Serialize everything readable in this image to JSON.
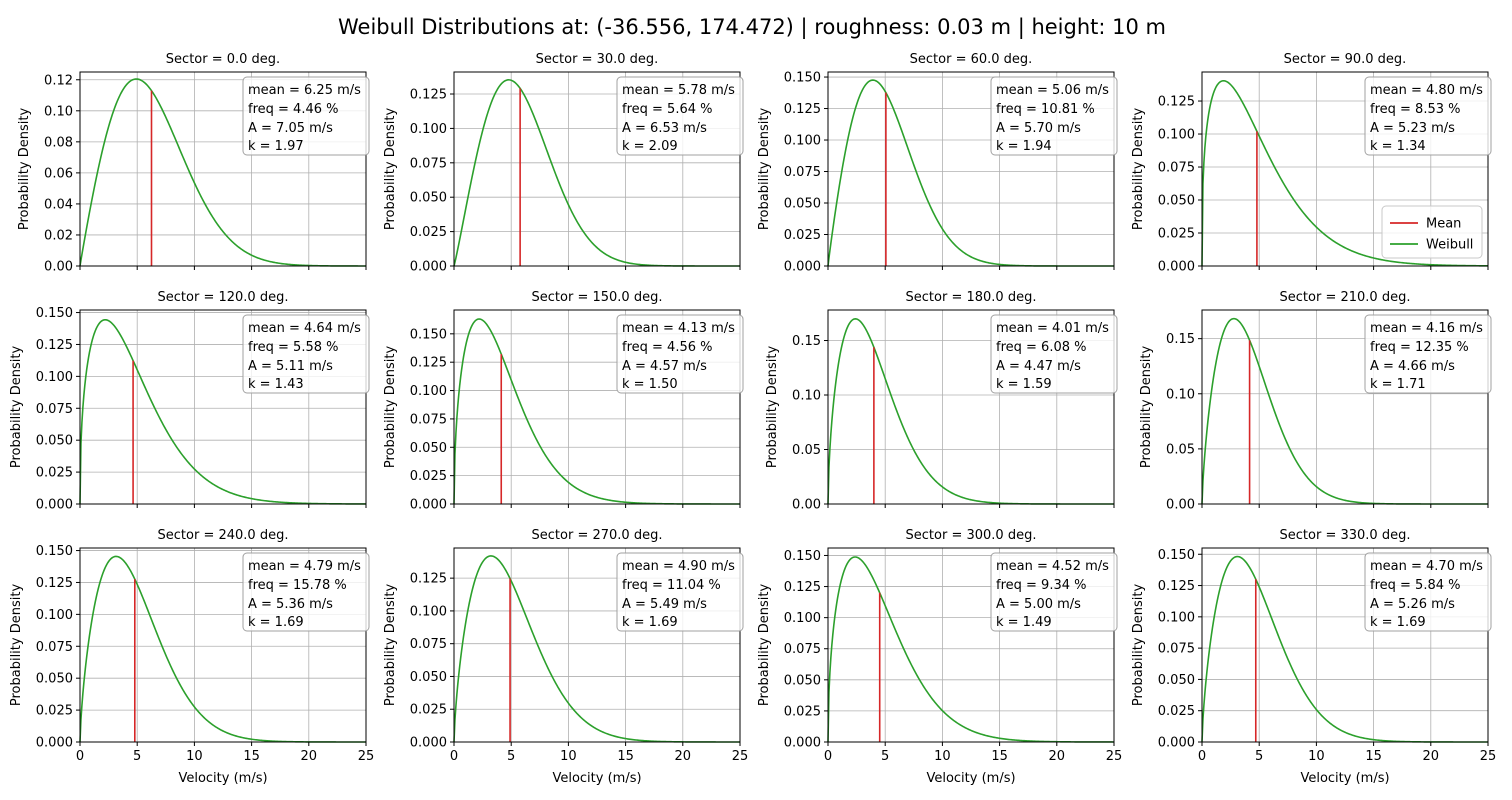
{
  "chart_data": {
    "type": "line",
    "title": "Weibull Distributions at: (-36.556, 174.472) | roughness: 0.03 m | height: 10 m",
    "xlabel": "Velocity (m/s)",
    "ylabel": "Probability Density",
    "xlim": [
      0,
      25
    ],
    "xticks": [
      0,
      5,
      10,
      15,
      20,
      25
    ],
    "grid": true,
    "legend": {
      "placement": "lower-right",
      "entries": [
        "Mean",
        "Weibull"
      ]
    },
    "colors": {
      "Mean": "#d62728",
      "Weibull": "#2ca02c"
    },
    "subplot_title_prefix": "Sector = ",
    "subplot_title_suffix": " deg.",
    "panels": [
      {
        "sector": "0.0",
        "mean": "6.25",
        "freq": "4.46",
        "A": "7.05",
        "k": "1.97",
        "ylim": [
          0,
          0.125
        ],
        "yticks": [
          "0.00",
          "0.02",
          "0.04",
          "0.06",
          "0.08",
          "0.10",
          "0.12"
        ]
      },
      {
        "sector": "30.0",
        "mean": "5.78",
        "freq": "5.64",
        "A": "6.53",
        "k": "2.09",
        "ylim": [
          0,
          0.141
        ],
        "yticks": [
          "0.000",
          "0.025",
          "0.050",
          "0.075",
          "0.100",
          "0.125"
        ]
      },
      {
        "sector": "60.0",
        "mean": "5.06",
        "freq": "10.81",
        "A": "5.70",
        "k": "1.94",
        "ylim": [
          0,
          0.154
        ],
        "yticks": [
          "0.000",
          "0.025",
          "0.050",
          "0.075",
          "0.100",
          "0.125",
          "0.150"
        ]
      },
      {
        "sector": "90.0",
        "mean": "4.80",
        "freq": "8.53",
        "A": "5.23",
        "k": "1.34",
        "ylim": [
          0,
          0.147
        ],
        "yticks": [
          "0.000",
          "0.025",
          "0.050",
          "0.075",
          "0.100",
          "0.125"
        ]
      },
      {
        "sector": "120.0",
        "mean": "4.64",
        "freq": "5.58",
        "A": "5.11",
        "k": "1.43",
        "ylim": [
          0,
          0.152
        ],
        "yticks": [
          "0.000",
          "0.025",
          "0.050",
          "0.075",
          "0.100",
          "0.125",
          "0.150"
        ]
      },
      {
        "sector": "150.0",
        "mean": "4.13",
        "freq": "4.56",
        "A": "4.57",
        "k": "1.50",
        "ylim": [
          0,
          0.171
        ],
        "yticks": [
          "0.000",
          "0.025",
          "0.050",
          "0.075",
          "0.100",
          "0.125",
          "0.150"
        ]
      },
      {
        "sector": "180.0",
        "mean": "4.01",
        "freq": "6.08",
        "A": "4.47",
        "k": "1.59",
        "ylim": [
          0,
          0.178
        ],
        "yticks": [
          "0.00",
          "0.05",
          "0.10",
          "0.15"
        ]
      },
      {
        "sector": "210.0",
        "mean": "4.16",
        "freq": "12.35",
        "A": "4.66",
        "k": "1.71",
        "ylim": [
          0,
          0.176
        ],
        "yticks": [
          "0.00",
          "0.05",
          "0.10",
          "0.15"
        ]
      },
      {
        "sector": "240.0",
        "mean": "4.79",
        "freq": "15.78",
        "A": "5.36",
        "k": "1.69",
        "ylim": [
          0,
          0.152
        ],
        "yticks": [
          "0.000",
          "0.025",
          "0.050",
          "0.075",
          "0.100",
          "0.125",
          "0.150"
        ]
      },
      {
        "sector": "270.0",
        "mean": "4.90",
        "freq": "11.04",
        "A": "5.49",
        "k": "1.69",
        "ylim": [
          0,
          0.148
        ],
        "yticks": [
          "0.000",
          "0.025",
          "0.050",
          "0.075",
          "0.100",
          "0.125"
        ]
      },
      {
        "sector": "300.0",
        "mean": "4.52",
        "freq": "9.34",
        "A": "5.00",
        "k": "1.49",
        "ylim": [
          0,
          0.156
        ],
        "yticks": [
          "0.000",
          "0.025",
          "0.050",
          "0.075",
          "0.100",
          "0.125",
          "0.150"
        ]
      },
      {
        "sector": "330.0",
        "mean": "4.70",
        "freq": "5.84",
        "A": "5.26",
        "k": "1.69",
        "ylim": [
          0,
          0.155
        ],
        "yticks": [
          "0.000",
          "0.025",
          "0.050",
          "0.075",
          "0.100",
          "0.125",
          "0.150"
        ]
      }
    ]
  }
}
